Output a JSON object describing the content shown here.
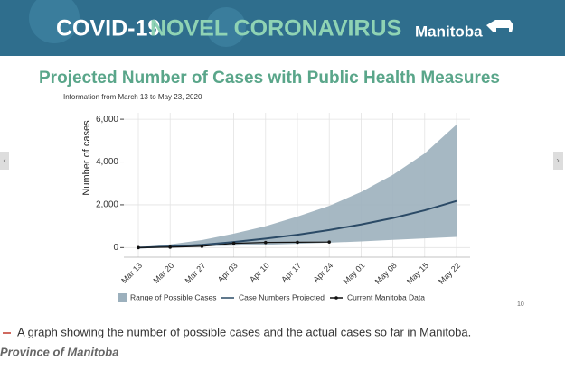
{
  "banner": {
    "title_lead": "COVID-19",
    "title_rest": "NOVEL CORONAVIRUS",
    "brand": "Manitoba"
  },
  "chart_data": {
    "type": "line",
    "title": "Projected Number of Cases with Public Health Measures",
    "subtitle": "Information from March 13 to May 23, 2020",
    "y_label": "Number of cases",
    "x": [
      "Mar 13",
      "Mar 20",
      "Mar 27",
      "Apr 03",
      "Apr 10",
      "Apr 17",
      "Apr 24",
      "May 01",
      "May 08",
      "May 15",
      "May 22"
    ],
    "ylim": [
      -450,
      6300
    ],
    "yticks": [
      0,
      {
        "value": 2000,
        "label": "2,000"
      },
      {
        "value": 4000,
        "label": "4,000"
      },
      {
        "value": 6000,
        "label": "6,000"
      }
    ],
    "grid": true,
    "legend": "bottom",
    "series": [
      {
        "name": "Range of Possible Cases",
        "color": "#9cb0bd",
        "kind": "band",
        "lower": [
          0,
          20,
          50,
          90,
          130,
          180,
          230,
          290,
          360,
          430,
          500
        ],
        "upper": [
          0,
          150,
          350,
          650,
          1000,
          1450,
          1950,
          2600,
          3400,
          4400,
          5750
        ]
      },
      {
        "name": "Case Numbers Projected",
        "color": "#2b4a66",
        "kind": "line",
        "values": [
          0,
          50,
          130,
          260,
          420,
          600,
          820,
          1080,
          1380,
          1740,
          2180
        ]
      },
      {
        "name": "Current Manitoba Data",
        "color": "#111111",
        "kind": "dots",
        "values": [
          0,
          20,
          60,
          200,
          240,
          250,
          260,
          null,
          null,
          null,
          null
        ]
      }
    ]
  },
  "page_number": "10",
  "caption": "A graph showing the number of possible cases and the actual cases so far in Manitoba.",
  "credit": "Province of Manitoba"
}
